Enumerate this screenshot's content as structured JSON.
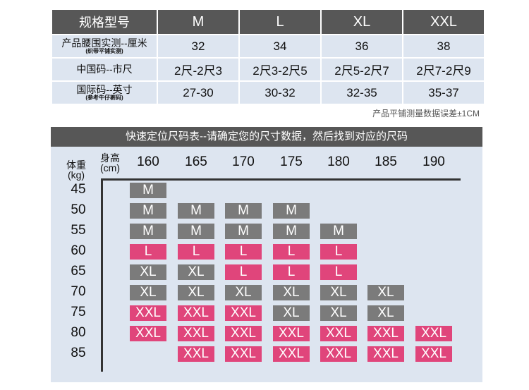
{
  "spec_table": {
    "header": [
      "规格型号",
      "M",
      "L",
      "XL",
      "XXL"
    ],
    "rows": [
      {
        "label": "产品腰围实测--厘米",
        "sub": "(织带平铺实测)",
        "values": [
          "32",
          "34",
          "36",
          "38"
        ]
      },
      {
        "label": "中国码--市尺",
        "sub": "",
        "values": [
          "2尺-2尺3",
          "2尺3-2尺5",
          "2尺5-2尺7",
          "2尺7-2尺9"
        ]
      },
      {
        "label": "国际码--英寸",
        "sub": "(参考牛仔裤码)",
        "values": [
          "27-30",
          "30-32",
          "32-35",
          "35-37"
        ]
      }
    ],
    "note": "产品平铺测量数据误差±1CM"
  },
  "quick_chart": {
    "title": "快速定位尺码表--请确定您的尺寸数据，然后找到对应的尺码",
    "height_label": "身高",
    "height_unit": "(cm)",
    "weight_label": "体重",
    "weight_unit": "(kg)",
    "heights": [
      "160",
      "165",
      "170",
      "175",
      "180",
      "185",
      "190"
    ],
    "weights": [
      "45",
      "50",
      "55",
      "60",
      "65",
      "70",
      "75",
      "80",
      "85"
    ],
    "colors": {
      "M": "#7b7b7b",
      "XL": "#7b7b7b",
      "L": "#e0457b",
      "XXL": "#e0457b"
    },
    "grid": [
      [
        "M",
        "",
        "",
        "",
        "",
        "",
        ""
      ],
      [
        "M",
        "M",
        "M",
        "M",
        "",
        "",
        ""
      ],
      [
        "M",
        "M",
        "M",
        "M",
        "M",
        "",
        ""
      ],
      [
        "L",
        "L",
        "L",
        "L",
        "L",
        "",
        ""
      ],
      [
        "XL",
        "XL",
        "L",
        "L",
        "L",
        "",
        ""
      ],
      [
        "XL",
        "XL",
        "XL",
        "XL",
        "XL",
        "XL",
        ""
      ],
      [
        "XXL",
        "XXL",
        "XXL",
        "XL",
        "XL",
        "XL",
        ""
      ],
      [
        "XXL",
        "XXL",
        "XXL",
        "XXL",
        "XXL",
        "XXL",
        "XXL"
      ],
      [
        "",
        "XXL",
        "XXL",
        "XXL",
        "XXL",
        "XXL",
        "XXL"
      ]
    ]
  }
}
